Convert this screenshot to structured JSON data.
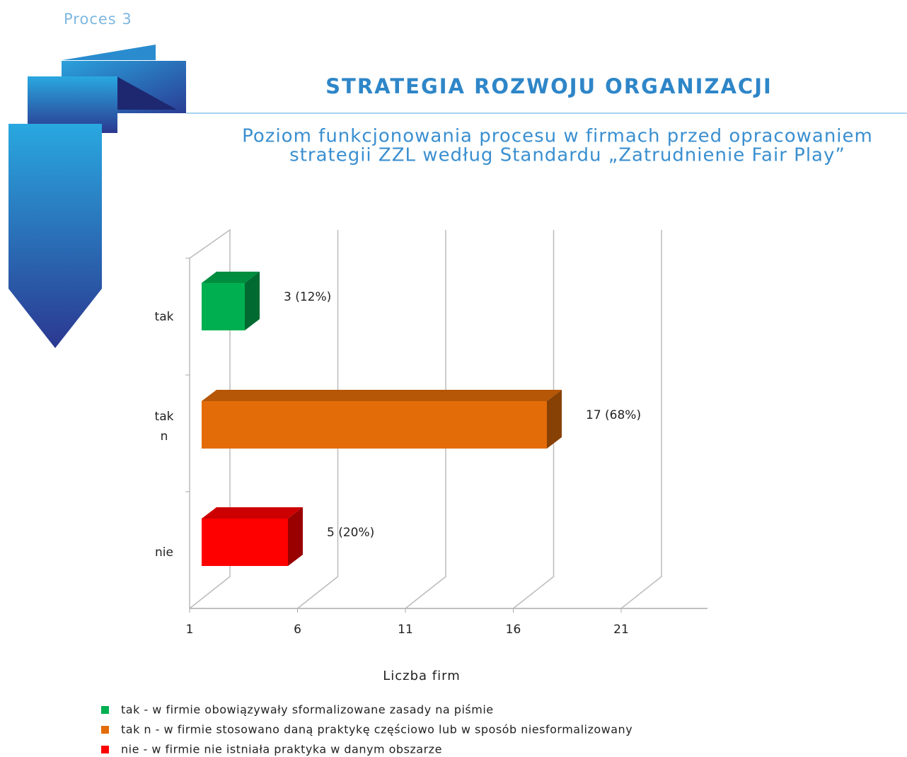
{
  "header": "Proces 3",
  "chart_data": {
    "type": "bar3d",
    "title": "STRATEGIA ROZWOJU ORGANIZACJI",
    "subtitle": [
      "Poziom funkcjonowania procesu w firmach przed opracowaniem",
      "strategii ZZL według Standardu „Zatrudnienie Fair Play”"
    ],
    "categories": [
      [
        "tak"
      ],
      [
        "tak",
        "n"
      ],
      [
        "nie"
      ]
    ],
    "values": [
      3,
      17,
      5
    ],
    "value_labels": [
      "3 (12%)",
      "17 (68%)",
      "5 (20%)"
    ],
    "colors": [
      "#00b050",
      "#e36c09",
      "#ff0000"
    ],
    "xlabel": "Liczba firm",
    "xlim": [
      1,
      25
    ],
    "xticks": [
      1,
      6,
      11,
      16,
      21
    ],
    "grid": true,
    "legend": [
      "tak - w firmie obowiązywały sformalizowane zasady na piśmie",
      "tak n - w firmie stosowano daną praktykę częściowo lub w sposób niesformalizowany",
      "nie - w firmie nie istniała praktyka w danym obszarze"
    ]
  }
}
